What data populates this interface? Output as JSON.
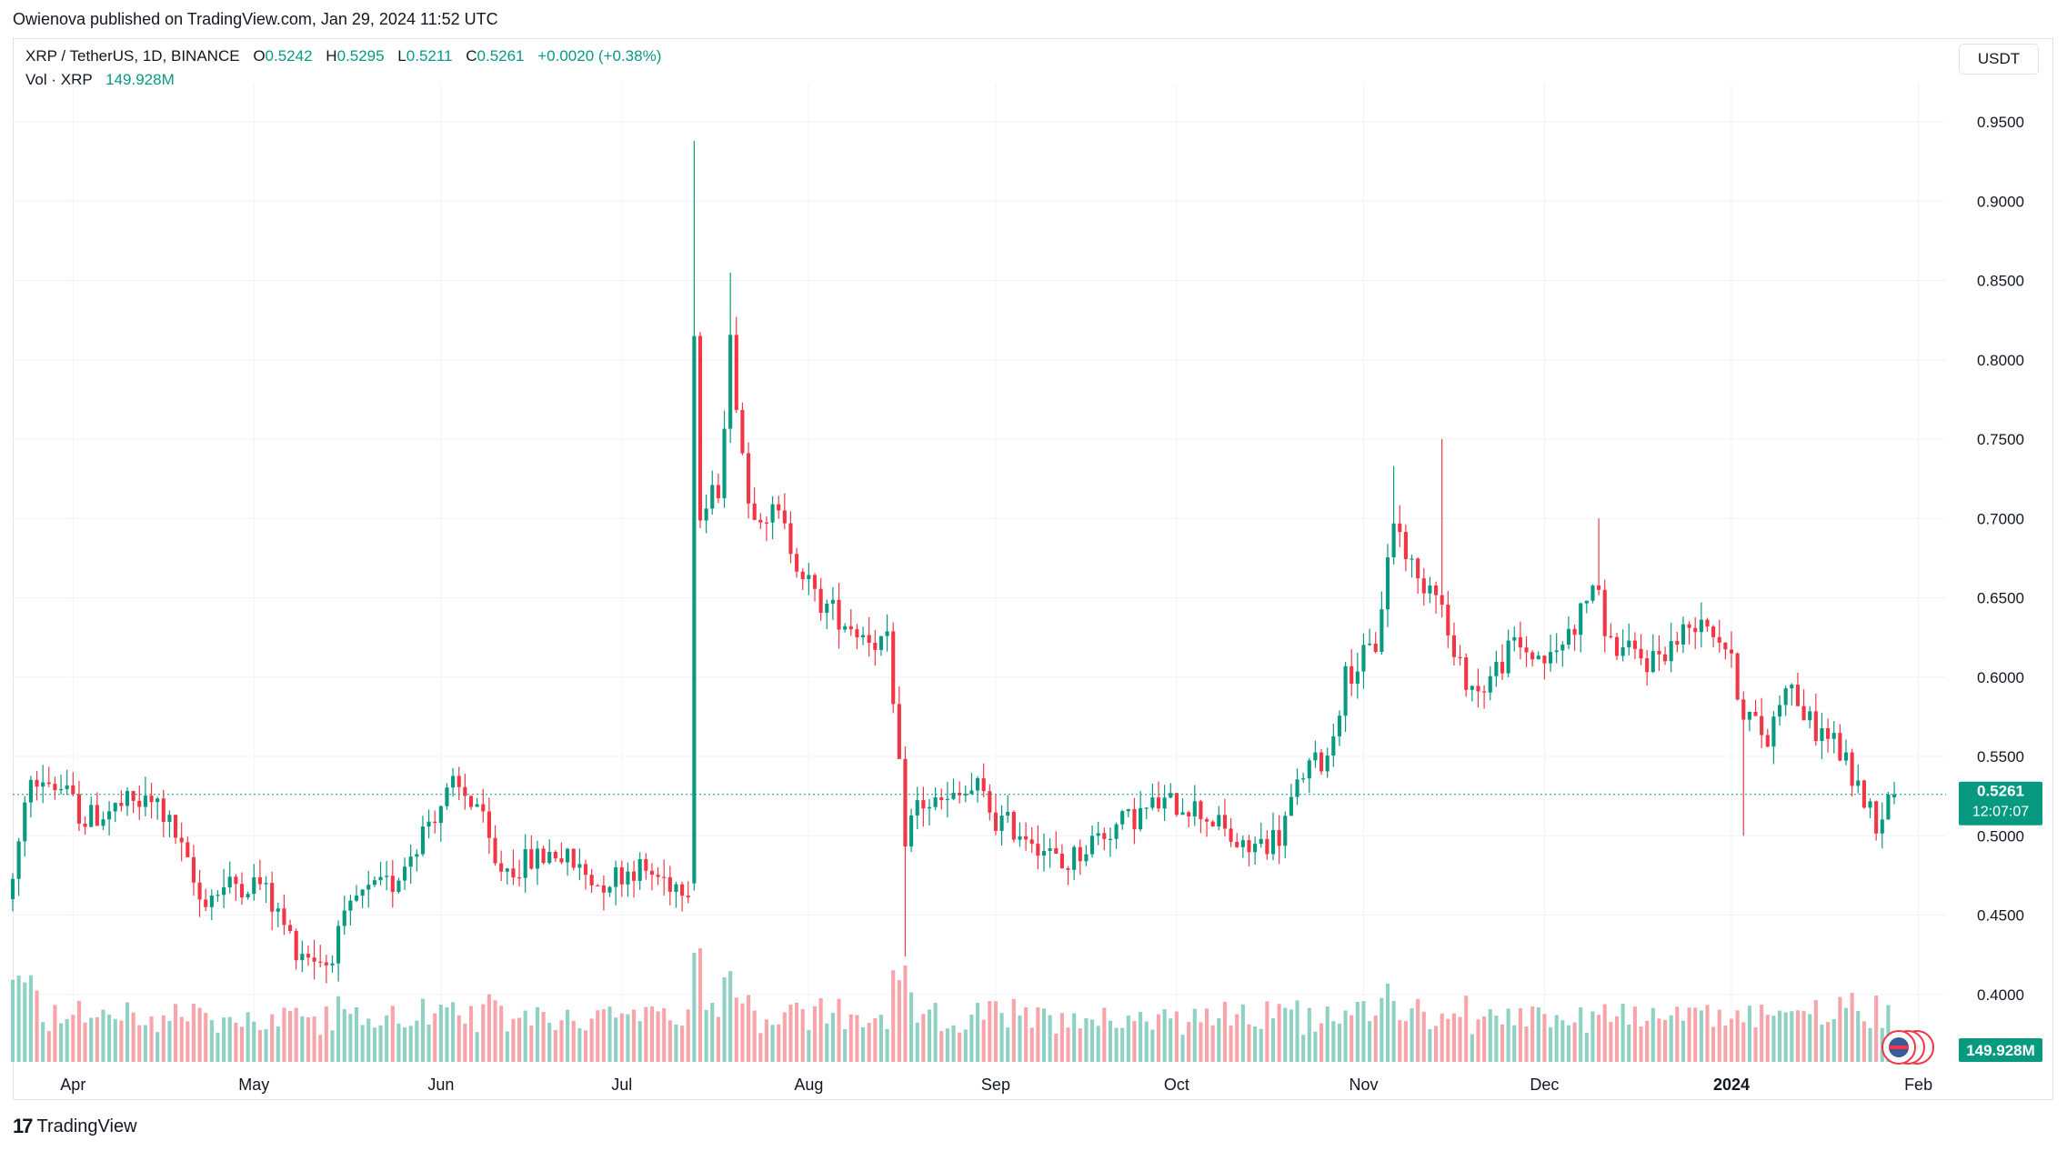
{
  "header": "Owienova published on TradingView.com, Jan 29, 2024 11:52 UTC",
  "legend": {
    "symbol": "XRP / TetherUS, 1D, BINANCE",
    "open_label": "O",
    "open": "0.5242",
    "high_label": "H",
    "high": "0.5295",
    "low_label": "L",
    "low": "0.5211",
    "close_label": "C",
    "close": "0.5261",
    "change": "+0.0020 (+0.38%)",
    "vol_label": "Vol · XRP",
    "vol_value": "149.928M"
  },
  "currency_button": "USDT",
  "price_badge": {
    "price": "0.5261",
    "countdown": "12:07:07"
  },
  "volume_badge": "149.928M",
  "footer_brand": "TradingView",
  "colors": {
    "up": "#089981",
    "down": "#f23645",
    "up_vol": "#8fd1c3",
    "down_vol": "#f7a5ab",
    "grid": "#f0f3fa",
    "text": "#131722"
  },
  "chart_data": {
    "type": "candlestick",
    "symbol": "XRP / TetherUS",
    "interval": "1D",
    "exchange": "BINANCE",
    "ylim": [
      0.37,
      0.975
    ],
    "y_ticks": [
      "0.9500",
      "0.9000",
      "0.8500",
      "0.8000",
      "0.7500",
      "0.7000",
      "0.6500",
      "0.6000",
      "0.5500",
      "0.5000",
      "0.4500",
      "0.4000"
    ],
    "x_ticks": [
      "Apr",
      "May",
      "Jun",
      "Jul",
      "Aug",
      "Sep",
      "Oct",
      "Nov",
      "Dec",
      "2024",
      "Feb"
    ],
    "x_range": [
      "2023-03-22",
      "2024-02-08"
    ],
    "last_price": 0.5261,
    "close_path": [
      [
        "2023-03-22",
        0.47
      ],
      [
        "2023-03-25",
        0.54
      ],
      [
        "2023-03-30",
        0.53
      ],
      [
        "2023-04-03",
        0.51
      ],
      [
        "2023-04-10",
        0.52
      ],
      [
        "2023-04-15",
        0.52
      ],
      [
        "2023-04-18",
        0.5
      ],
      [
        "2023-04-22",
        0.46
      ],
      [
        "2023-04-28",
        0.47
      ],
      [
        "2023-05-02",
        0.47
      ],
      [
        "2023-05-08",
        0.43
      ],
      [
        "2023-05-13",
        0.42
      ],
      [
        "2023-05-18",
        0.46
      ],
      [
        "2023-05-24",
        0.47
      ],
      [
        "2023-05-30",
        0.51
      ],
      [
        "2023-06-03",
        0.53
      ],
      [
        "2023-06-07",
        0.52
      ],
      [
        "2023-06-10",
        0.48
      ],
      [
        "2023-06-13",
        0.48
      ],
      [
        "2023-06-20",
        0.49
      ],
      [
        "2023-06-27",
        0.47
      ],
      [
        "2023-07-03",
        0.48
      ],
      [
        "2023-07-10",
        0.47
      ],
      [
        "2023-07-13",
        0.47
      ],
      [
        "2023-07-13",
        0.815
      ],
      [
        "2023-07-14",
        0.7
      ],
      [
        "2023-07-17",
        0.72
      ],
      [
        "2023-07-19",
        0.81
      ],
      [
        "2023-07-22",
        0.71
      ],
      [
        "2023-07-27",
        0.7
      ],
      [
        "2023-08-02",
        0.65
      ],
      [
        "2023-08-09",
        0.63
      ],
      [
        "2023-08-14",
        0.62
      ],
      [
        "2023-08-17",
        0.5
      ],
      [
        "2023-08-19",
        0.52
      ],
      [
        "2023-08-24",
        0.52
      ],
      [
        "2023-08-29",
        0.53
      ],
      [
        "2023-09-01",
        0.51
      ],
      [
        "2023-09-07",
        0.5
      ],
      [
        "2023-09-12",
        0.48
      ],
      [
        "2023-09-18",
        0.5
      ],
      [
        "2023-09-23",
        0.51
      ],
      [
        "2023-09-28",
        0.52
      ],
      [
        "2023-10-03",
        0.52
      ],
      [
        "2023-10-07",
        0.51
      ],
      [
        "2023-10-12",
        0.49
      ],
      [
        "2023-10-18",
        0.5
      ],
      [
        "2023-10-22",
        0.54
      ],
      [
        "2023-10-26",
        0.55
      ],
      [
        "2023-10-29",
        0.6
      ],
      [
        "2023-11-03",
        0.62
      ],
      [
        "2023-11-06",
        0.7
      ],
      [
        "2023-11-10",
        0.66
      ],
      [
        "2023-11-13",
        0.66
      ],
      [
        "2023-11-16",
        0.61
      ],
      [
        "2023-11-20",
        0.59
      ],
      [
        "2023-11-26",
        0.62
      ],
      [
        "2023-12-02",
        0.61
      ],
      [
        "2023-12-07",
        0.64
      ],
      [
        "2023-12-09",
        0.66
      ],
      [
        "2023-12-12",
        0.62
      ],
      [
        "2023-12-18",
        0.61
      ],
      [
        "2023-12-22",
        0.62
      ],
      [
        "2023-12-27",
        0.64
      ],
      [
        "2023-12-31",
        0.62
      ],
      [
        "2024-01-03",
        0.58
      ],
      [
        "2024-01-07",
        0.56
      ],
      [
        "2024-01-10",
        0.6
      ],
      [
        "2024-01-14",
        0.57
      ],
      [
        "2024-01-18",
        0.56
      ],
      [
        "2024-01-22",
        0.53
      ],
      [
        "2024-01-25",
        0.51
      ],
      [
        "2024-01-28",
        0.5261
      ]
    ],
    "notable_highs": [
      [
        "2023-07-13",
        0.938
      ],
      [
        "2023-07-19",
        0.855
      ],
      [
        "2023-11-14",
        0.75
      ],
      [
        "2023-11-06",
        0.733
      ],
      [
        "2023-12-10",
        0.7
      ]
    ],
    "notable_lows": [
      [
        "2023-08-17",
        0.424
      ],
      [
        "2024-01-03",
        0.5
      ],
      [
        "2024-01-25",
        0.497
      ]
    ]
  }
}
